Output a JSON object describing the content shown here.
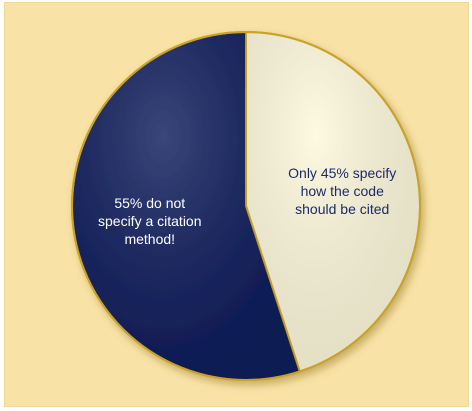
{
  "chart_data": {
    "type": "pie",
    "title": "",
    "slices": [
      {
        "label_lines": [
          "Only 45% specify",
          "how the code",
          "should be cited"
        ],
        "value": 45,
        "color": "#fef9dc",
        "text_color": "#1b2a6b"
      },
      {
        "label_lines": [
          "55% do not",
          "specify a citation",
          "method!"
        ],
        "value": 55,
        "color": "#0f1d5c",
        "text_color": "#ffffff"
      }
    ],
    "start_angle_deg": 0,
    "direction": "clockwise",
    "legend": "none"
  },
  "colors": {
    "background": "#f8e2a6",
    "pie_border": "#c9a227"
  }
}
